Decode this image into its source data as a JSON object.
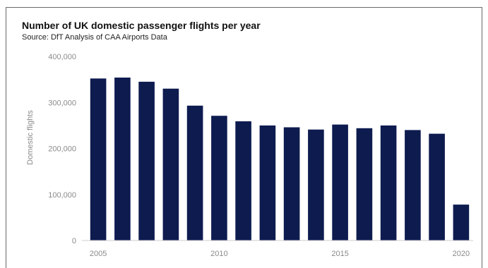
{
  "chart_data": {
    "type": "bar",
    "title": "Number of UK domestic passenger flights per year",
    "subtitle": "Source: DfT Analysis of CAA Airports Data",
    "xlabel": "",
    "ylabel": "Domestic flights",
    "categories": [
      2005,
      2006,
      2007,
      2008,
      2009,
      2010,
      2011,
      2012,
      2013,
      2014,
      2015,
      2016,
      2017,
      2018,
      2019,
      2020
    ],
    "values": [
      352000,
      354000,
      345000,
      330000,
      293000,
      271000,
      259000,
      250000,
      246000,
      241000,
      252000,
      244000,
      250000,
      240000,
      232000,
      78000
    ],
    "ylim": [
      0,
      400000
    ],
    "yticks": [
      0,
      100000,
      200000,
      300000,
      400000
    ],
    "ytick_labels": [
      "0",
      "100,000",
      "200,000",
      "300,000",
      "400,000"
    ],
    "xticks": [
      2005,
      2010,
      2015,
      2020
    ],
    "bar_color": "#0d1b4f",
    "grid": false,
    "legend": "none"
  }
}
